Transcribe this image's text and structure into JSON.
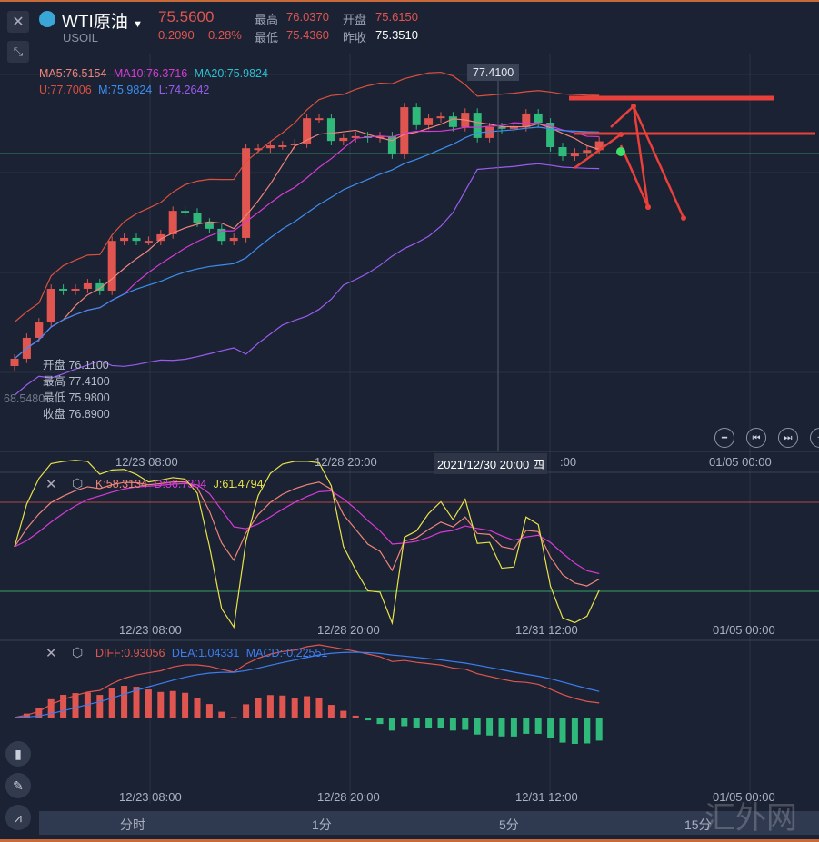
{
  "header": {
    "symbol_name": "WTI原油",
    "symbol_code": "USOIL",
    "last_price": "75.5600",
    "change": "0.2090",
    "change_pct": "0.28%",
    "high_label": "最高",
    "high": "76.0370",
    "open_label": "开盘",
    "open": "75.6150",
    "low_label": "最低",
    "low": "75.4360",
    "prev_close_label": "昨收",
    "prev_close": "75.3510"
  },
  "indicators": {
    "ma5": "MA5:76.5154",
    "ma10": "MA10:76.3716",
    "ma20": "MA20:75.9824",
    "boll_u": "U:77.7006",
    "boll_m": "M:75.9824",
    "boll_l": "L:74.2642"
  },
  "crosshair": {
    "price_tag": "77.4100",
    "left_price": "68.5480",
    "date": "2021/12/30 20:00 四",
    "open": "开盘 76.1100",
    "high": "最高 77.4100",
    "low": "最低 75.9800",
    "close": "收盘 76.8900"
  },
  "main_axis": [
    "12/23 08:00",
    "12/28 20:00",
    ":00",
    "01/05 00:00"
  ],
  "kdj": {
    "k": "K:58.3134",
    "d": "D:56.7304",
    "j": "J:61.4794"
  },
  "kdj_axis": [
    "12/23 08:00",
    "12/28 20:00",
    "12/31 12:00",
    "01/05 00:00"
  ],
  "macd": {
    "diff": "DIFF:0.93056",
    "dea": "DEA:1.04331",
    "macd": "MACD:-0.22551"
  },
  "macd_axis": [
    "12/23 08:00",
    "12/28 20:00",
    "12/31 12:00",
    "01/05 00:00"
  ],
  "tabs": [
    "分时",
    "1分",
    "5分",
    "15分"
  ],
  "watermark": "汇外网",
  "colors": {
    "up": "#e0554f",
    "down": "#2fb97a",
    "ma5": "#f0857a",
    "ma10": "#d63bd6",
    "ma20": "#2bc0d0",
    "boll_u": "#d9503f",
    "boll_m": "#3d8ef0",
    "boll_l": "#9a5cf0",
    "k": "#f0857a",
    "d": "#d63bd6",
    "j": "#e8e34a",
    "dea": "#3d7ef0",
    "diff": "#e0554f"
  },
  "chart_data": {
    "type": "candlestick",
    "price_reference": {
      "price": 77.41,
      "crosshair": true
    },
    "closes": [
      69.62,
      70.19,
      70.61,
      71.53,
      71.48,
      71.53,
      71.68,
      71.48,
      72.84,
      72.92,
      72.84,
      72.84,
      73.02,
      73.66,
      73.61,
      73.34,
      73.17,
      72.84,
      72.92,
      75.37,
      75.37,
      75.45,
      75.45,
      75.5,
      76.19,
      76.19,
      75.57,
      75.65,
      75.7,
      75.65,
      75.7,
      75.2,
      76.49,
      76.0,
      76.19,
      76.24,
      75.95,
      76.34,
      75.65,
      75.95,
      75.9,
      75.95,
      76.32,
      76.07,
      75.4,
      75.15,
      75.25,
      75.32,
      75.56
    ]
  }
}
